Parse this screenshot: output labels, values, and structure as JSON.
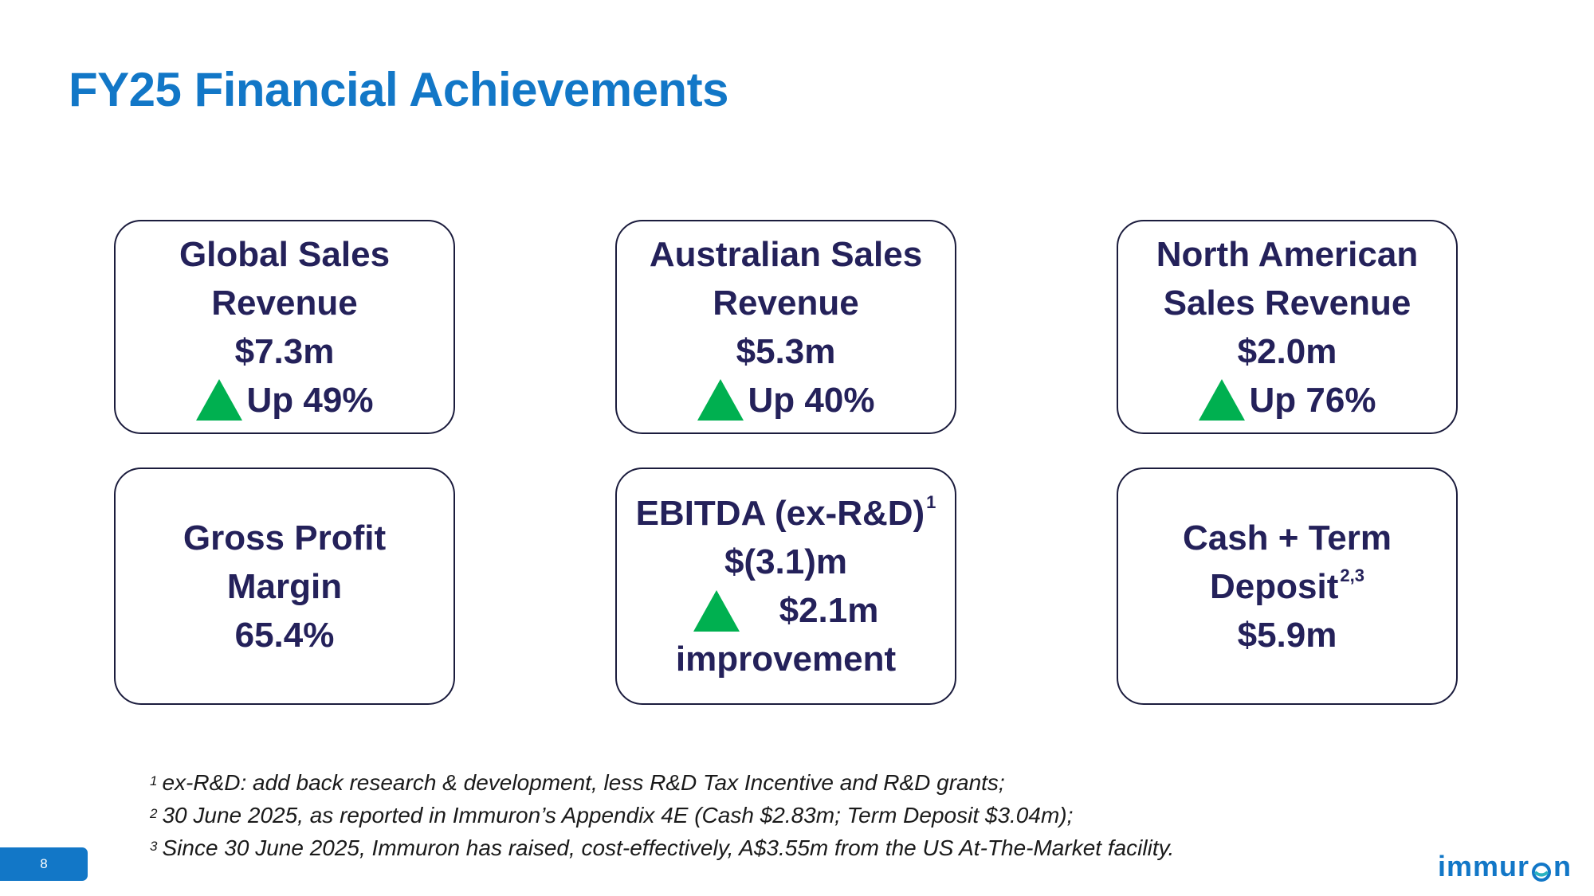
{
  "slide": {
    "title": "FY25 Financial Achievements",
    "page_number": "8"
  },
  "cards": {
    "global": {
      "line1": "Global Sales",
      "line2": "Revenue",
      "value": "$7.3m",
      "change": "Up 49%",
      "trend_icon": "up-triangle"
    },
    "australian": {
      "line1": "Australian Sales",
      "line2": "Revenue",
      "value": "$5.3m",
      "change": "Up 40%",
      "trend_icon": "up-triangle"
    },
    "north_american": {
      "line1": "North American",
      "line2": "Sales Revenue",
      "value": "$2.0m",
      "change": "Up 76%",
      "trend_icon": "up-triangle"
    },
    "gross_profit": {
      "line1": "Gross Profit",
      "line2": "Margin",
      "value": "65.4%"
    },
    "ebitda": {
      "line1": "EBITDA (ex-R&D)",
      "footnote_ref": "1",
      "value": "$(3.1)m",
      "change_value": "$2.1m",
      "change_label": "improvement",
      "trend_icon": "up-triangle"
    },
    "cash": {
      "line1": "Cash + Term",
      "line2": "Deposit",
      "footnote_ref": "2,3",
      "value": "$5.9m"
    }
  },
  "footnotes": [
    {
      "num": "1",
      "text": "ex-R&D: add back research & development, less R&D Tax Incentive and R&D grants;"
    },
    {
      "num": "2",
      "text": "30 June 2025, as reported in Immuron’s Appendix 4E (Cash $2.83m; Term Deposit $3.04m);"
    },
    {
      "num": "3",
      "text": "Since 30 June 2025, Immuron has raised, cost-effectively, A$3.55m from the US At-The-Market facility."
    }
  ],
  "logo": {
    "text_before": "immur",
    "text_after": "n"
  },
  "colors": {
    "title": "#1277c7",
    "card_text": "#24215a",
    "card_border": "#1b1c3d",
    "up_triangle": "#00b050",
    "page_badge": "#1277c7"
  }
}
